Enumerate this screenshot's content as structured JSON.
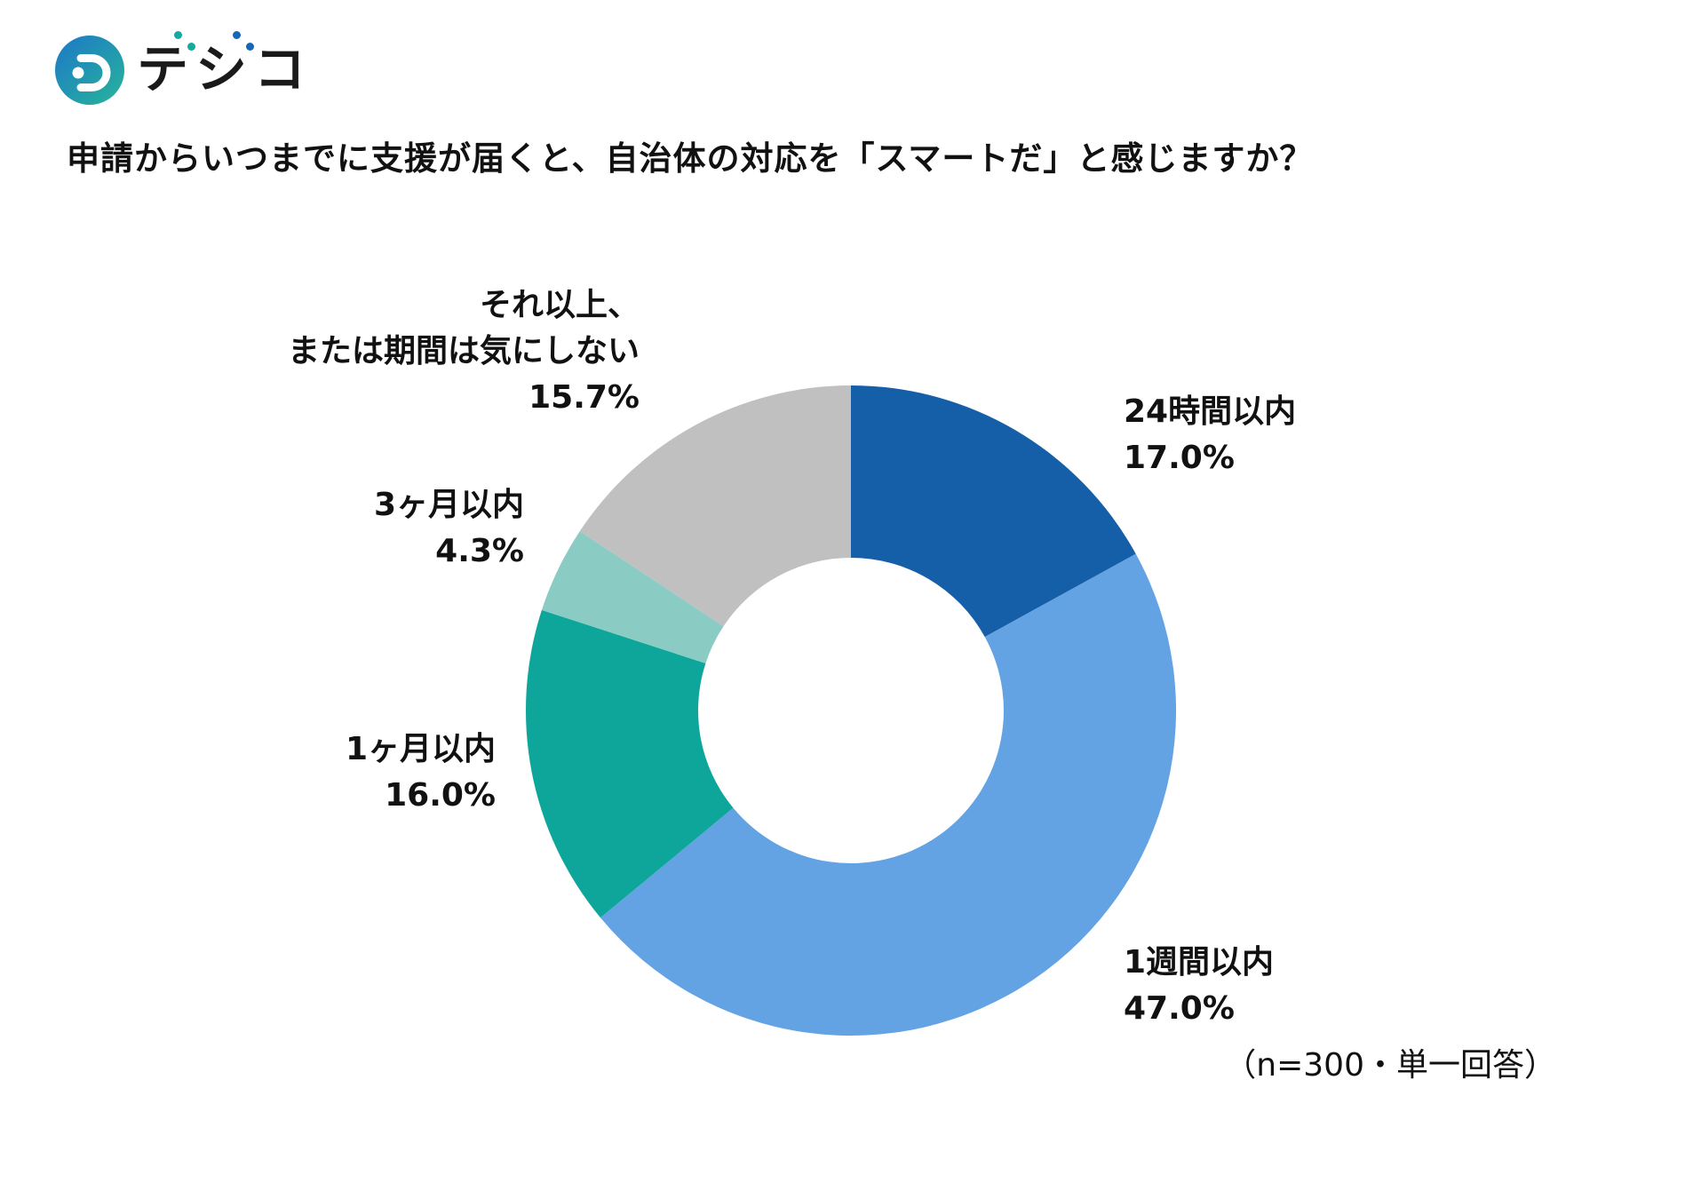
{
  "logo": {
    "brand_text": "デジコ",
    "chars": [
      {
        "base": "テ",
        "dakuten_color": "#16a9a0"
      },
      {
        "base": "シ",
        "dakuten_color": "#1767b6"
      },
      {
        "base": "コ",
        "dakuten_color": ""
      }
    ],
    "icon": {
      "name": "digico-logo-icon",
      "gradient_start": "#1d78c8",
      "gradient_end": "#27b39a"
    }
  },
  "chart_data": {
    "type": "pie",
    "variant": "donut",
    "title": "申請からいつまでに支援が届くと、自治体の対応を「スマートだ」と感じますか？",
    "note": "（n=300・単一回答）",
    "start_angle_deg": 0,
    "direction": "clockwise",
    "inner_radius_ratio": 0.47,
    "legend_position": "around-chart",
    "segments": [
      {
        "label": "24時間以内",
        "value": 17.0,
        "display": "17.0%",
        "color": "#155fa9"
      },
      {
        "label": "1週間以内",
        "value": 47.0,
        "display": "47.0%",
        "color": "#63a2e3"
      },
      {
        "label": "1ヶ月以内",
        "value": 16.0,
        "display": "16.0%",
        "color": "#0ea69a"
      },
      {
        "label": "3ヶ月以内",
        "value": 4.3,
        "display": "4.3%",
        "color": "#8accc4"
      },
      {
        "label": "それ以上、または期間は気にしない",
        "label_lines": [
          "それ以上、",
          "または期間は気にしない"
        ],
        "value": 15.7,
        "display": "15.7%",
        "color": "#c0c0c1"
      }
    ]
  }
}
